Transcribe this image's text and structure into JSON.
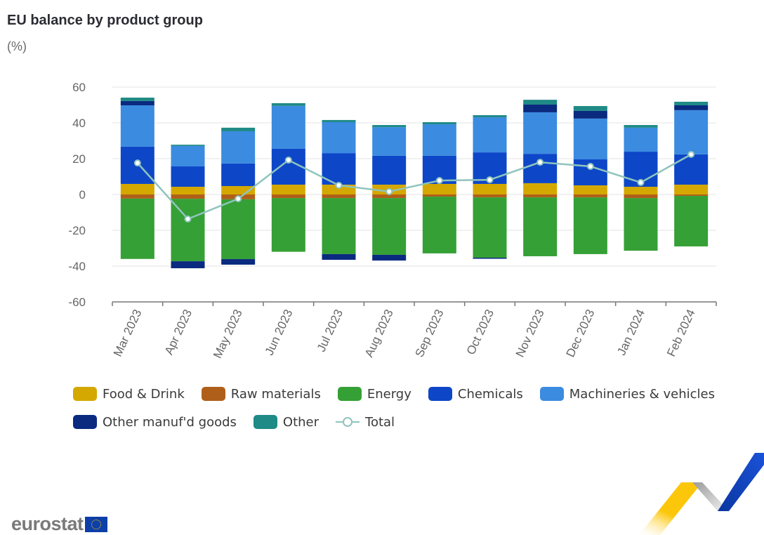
{
  "header": {
    "title": "EU balance by product group",
    "subtitle": "(%)"
  },
  "chart_data": {
    "type": "bar",
    "stacked": true,
    "title": "EU balance by product group",
    "subtitle": "(%)",
    "xlabel": "",
    "ylabel": "%",
    "ylim": [
      -60,
      60
    ],
    "yticks": [
      60,
      40,
      20,
      0,
      -20,
      -40,
      -60
    ],
    "grid": true,
    "legend_position": "bottom",
    "categories": [
      "Mar 2023",
      "Apr 2023",
      "May 2023",
      "Jun 2023",
      "Jul 2023",
      "Aug 2023",
      "Sep 2023",
      "Oct 2023",
      "Nov 2023",
      "Dec 2023",
      "Jan 2024",
      "Feb 2024"
    ],
    "series": [
      {
        "name": "Food & Drink",
        "color": "#d4a800",
        "values": [
          5.9,
          4.3,
          4.7,
          5.5,
          5.5,
          5.5,
          5.9,
          5.9,
          6.3,
          5.1,
          4.3,
          5.5
        ]
      },
      {
        "name": "Raw materials",
        "color": "#b05f1a",
        "values": [
          -2.3,
          -2.4,
          -2.7,
          -2.0,
          -2.0,
          -2.0,
          -1.2,
          -1.6,
          -1.6,
          -1.6,
          -2.0,
          -0.8
        ]
      },
      {
        "name": "Energy",
        "color": "#35a035",
        "values": [
          -33.7,
          -34.9,
          -33.4,
          -30.0,
          -31.3,
          -31.7,
          -31.7,
          -33.7,
          -32.9,
          -31.7,
          -29.4,
          -28.2
        ]
      },
      {
        "name": "Chemicals",
        "color": "#0d47c8",
        "values": [
          20.8,
          11.4,
          12.6,
          20.0,
          17.6,
          16.1,
          15.7,
          17.6,
          16.4,
          14.5,
          19.6,
          16.9
        ]
      },
      {
        "name": "Machineries & vehicles",
        "color": "#3b8be0",
        "values": [
          23.1,
          11.4,
          18.0,
          24.0,
          17.3,
          16.0,
          17.6,
          19.6,
          23.2,
          22.8,
          13.4,
          24.7
        ]
      },
      {
        "name": "Other manuf'd goods",
        "color": "#0a2a80",
        "values": [
          2.4,
          -3.9,
          -3.1,
          0.0,
          -3.2,
          -3.2,
          0.0,
          -0.6,
          4.3,
          4.3,
          0.0,
          2.7
        ]
      },
      {
        "name": "Other",
        "color": "#1f8a86",
        "values": [
          1.9,
          0.7,
          2.0,
          1.5,
          1.2,
          1.2,
          1.2,
          1.2,
          2.7,
          2.7,
          1.5,
          2.0
        ]
      }
    ],
    "line_series": {
      "name": "Total",
      "color": "#8fc4bd",
      "values": [
        17.6,
        -13.7,
        -2.4,
        19.2,
        5.1,
        1.6,
        7.8,
        8.2,
        18.0,
        15.7,
        6.7,
        22.4
      ]
    }
  },
  "legend": {
    "items": [
      {
        "label": "Food & Drink",
        "color": "#d4a800",
        "kind": "swatch"
      },
      {
        "label": "Raw materials",
        "color": "#b05f1a",
        "kind": "swatch"
      },
      {
        "label": "Energy",
        "color": "#35a035",
        "kind": "swatch"
      },
      {
        "label": "Chemicals",
        "color": "#0d47c8",
        "kind": "swatch"
      },
      {
        "label": "Machineries & vehicles",
        "color": "#3b8be0",
        "kind": "swatch"
      },
      {
        "label": "Other manuf'd goods",
        "color": "#0a2a80",
        "kind": "swatch"
      },
      {
        "label": "Other",
        "color": "#1f8a86",
        "kind": "swatch"
      },
      {
        "label": "Total",
        "color": "#8fc4bd",
        "kind": "line"
      }
    ]
  },
  "footer": {
    "logo_text": "eurostat",
    "logo_icon": "eu-flag-icon",
    "ribbon_icon": "eurostat-ribbon-icon"
  }
}
